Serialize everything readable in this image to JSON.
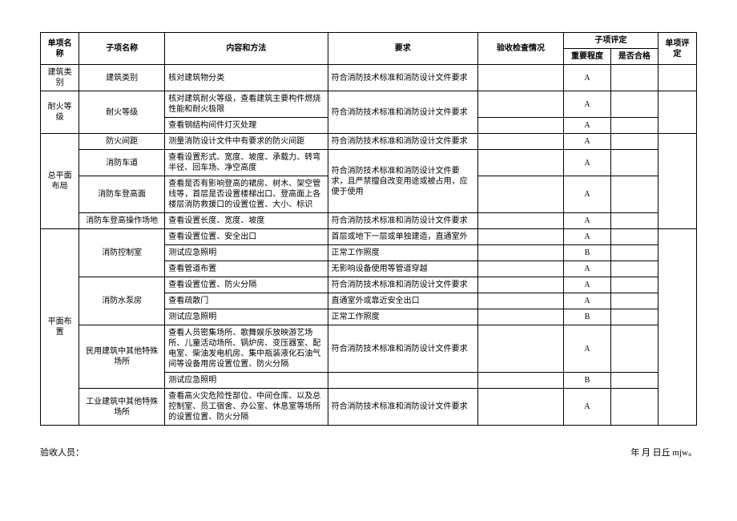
{
  "headers": {
    "danxiang": "单项名称",
    "zixiang": "子项名称",
    "neirong": "内容和方法",
    "yaoqiu": "要求",
    "jiancha": "验收检查情况",
    "zipingding": "子项评定",
    "zhongyao": "重要程度",
    "shifou": "是否合格",
    "dxpd": "单项评定"
  },
  "groups": {
    "jianzhu": "建筑类别",
    "naihuo": "耐火等级",
    "zongpingmian": "总平面布局",
    "pingmian": "平面布置"
  },
  "subitems": {
    "jzlb": "建筑类别",
    "nhdj": "耐火等级",
    "fhjj": "防火间距",
    "xfcd": "消防车道",
    "xfcdgm": "消防车登高面",
    "xfcdgczcd": "消防车登高操作场地",
    "xfkzs": "消防控制室",
    "xfsbf": "消防水泵房",
    "myjz": "民用建筑中其他特殊场所",
    "gyjz": "工业建筑中其他特殊场所"
  },
  "content": {
    "c1": "核对建筑物分类",
    "c2": "核对建筑耐火等级，查看建筑主要构件燃烧性能和耐火极限",
    "c3": "查看钢结构间件灯灭处理",
    "c4": "测量消防设计文件中有要求的防火间距",
    "c5": "查看设置形式、宽度、坡度、承载力、转弯半径、回车场、净空高度",
    "c6": "查看是否有影响登高的裙房、树木、架空管线等，首层是否设置楼梯出口、登高面上各楼层消防救援口的设置位置、大小、标识",
    "c7": "查看设置长度、宽度、坡度",
    "c8": "查看设置位置、安全出口",
    "c9": "测试应急照明",
    "c10": "查看管道布置",
    "c11": "查看设置位置、防火分隔",
    "c12": "查看疏散门",
    "c13": "测试应急照明",
    "c14": "查看人员密集场所、歌舞娱乐放映游艺场所、儿童活动场所、锅炉房、变压器室、配电室、柴油发电机房、集中瓶装液化石油气间等设备用房设置位置、防火分隔",
    "c15": "测试应急照明",
    "c16": "查看高火灾危险性部位、中间仓库、以及总控制室、员工宿舍、办公室、休息室等场所的设置位置、防火分隔"
  },
  "req": {
    "r1": "符合消防技术标准和消防设计文件要求",
    "r5_6": "符合消防技术标准和消防设计文件要求，且严禁擅自改变用途或被占用，应便于使用",
    "r8": "首层或地下一层或单独建造，直通室外",
    "r9": "正常工作照度",
    "r10": "无影响设备使用等管道穿越",
    "r12": "直通室外或靠近安全出口",
    "r13": "正常工作照度"
  },
  "importance": {
    "A": "A",
    "B": "B"
  },
  "footer": {
    "left": "验收人员：",
    "right": "年 月 日丘 mjw。"
  }
}
